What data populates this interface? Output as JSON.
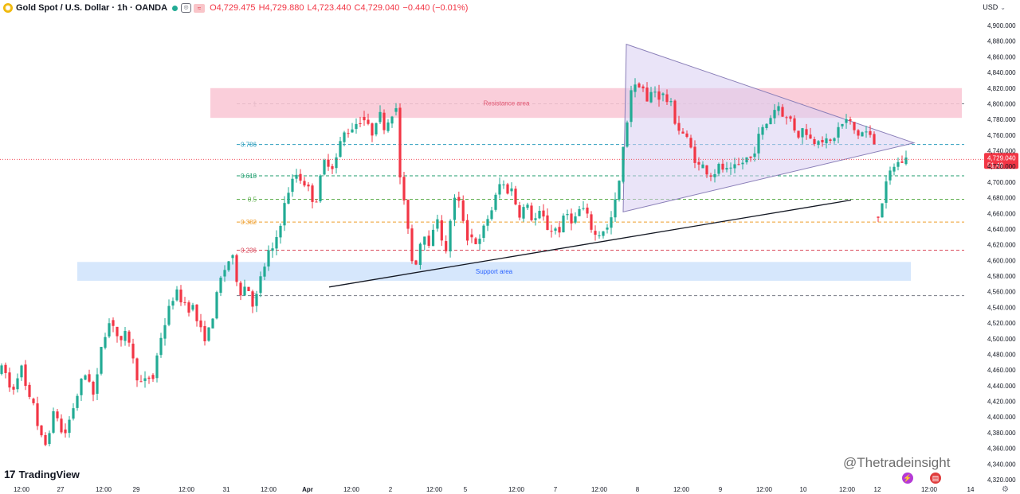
{
  "header": {
    "symbol_title": "Gold Spot / U.S. Dollar · 1h · OANDA",
    "open": "O4,729.475",
    "high": "H4,729.880",
    "low": "L4,723.440",
    "close": "C4,729.040",
    "change": "−0.440 (−0.01%)"
  },
  "currency": "USD",
  "branding": {
    "logo_text": "TradingView",
    "watermark": "@Thetradeinsight"
  },
  "colors": {
    "up": "#22ab94",
    "down": "#f23645",
    "resistance_zone": "#f9c5d4",
    "support_zone": "#cfe3fb",
    "triangle_fill": "#d8cdf3",
    "triangle_stroke": "#8a7fb8"
  },
  "chart_data": {
    "type": "candlestick",
    "symbol": "XAUUSD",
    "interval": "1h",
    "y_axis": {
      "range": [
        4320,
        4920
      ],
      "ticks": [
        4320,
        4340,
        4360,
        4380,
        4400,
        4420,
        4440,
        4460,
        4480,
        4500,
        4520,
        4540,
        4560,
        4580,
        4600,
        4620,
        4640,
        4660,
        4680,
        4700,
        4720,
        4740,
        4760,
        4780,
        4800,
        4820,
        4840,
        4860,
        4880,
        4900
      ],
      "tick_labels": [
        "4,320.000",
        "4,340.000",
        "4,360.000",
        "4,380.000",
        "4,400.000",
        "4,420.000",
        "4,440.000",
        "4,460.000",
        "4,480.000",
        "4,500.000",
        "4,520.000",
        "4,540.000",
        "4,560.000",
        "4,580.000",
        "4,600.000",
        "4,620.000",
        "4,640.000",
        "4,660.000",
        "4,680.000",
        "4,700.000",
        "4,720.000",
        "4,740.000",
        "4,760.000",
        "4,780.000",
        "4,800.000",
        "4,820.000",
        "4,840.000",
        "4,860.000",
        "4,880.000",
        "4,900.000"
      ]
    },
    "x_axis": {
      "range": [
        0,
        1210
      ],
      "ticks": [
        {
          "x": 27,
          "label": "12:00"
        },
        {
          "x": 76,
          "label": "27"
        },
        {
          "x": 130,
          "label": "12:00"
        },
        {
          "x": 171,
          "label": "29"
        },
        {
          "x": 234,
          "label": "12:00"
        },
        {
          "x": 284,
          "label": "31"
        },
        {
          "x": 337,
          "label": "12:00"
        },
        {
          "x": 386,
          "label": "Apr"
        },
        {
          "x": 441,
          "label": "12:00"
        },
        {
          "x": 490,
          "label": "2"
        },
        {
          "x": 545,
          "label": "12:00"
        },
        {
          "x": 584,
          "label": "5"
        },
        {
          "x": 648,
          "label": "12:00"
        },
        {
          "x": 697,
          "label": "7"
        },
        {
          "x": 752,
          "label": "12:00"
        },
        {
          "x": 800,
          "label": "8"
        },
        {
          "x": 855,
          "label": "12:00"
        },
        {
          "x": 904,
          "label": "9"
        },
        {
          "x": 959,
          "label": "12:00"
        },
        {
          "x": 1008,
          "label": "10"
        },
        {
          "x": 1063,
          "label": "12:00"
        },
        {
          "x": 1101,
          "label": "12"
        },
        {
          "x": 1166,
          "label": "12:00"
        },
        {
          "x": 1218,
          "label": "14"
        }
      ]
    },
    "segments": [
      {
        "x": [
          0,
          40
        ],
        "anchors": [
          4460,
          4455,
          4430,
          4445,
          4470,
          4440,
          4420
        ]
      },
      {
        "x": [
          40,
          80
        ],
        "anchors": [
          4420,
          4380,
          4360,
          4390,
          4410,
          4380
        ]
      },
      {
        "x": [
          80,
          140
        ],
        "anchors": [
          4380,
          4410,
          4440,
          4460,
          4420,
          4500,
          4520
        ]
      },
      {
        "x": [
          140,
          190
        ],
        "anchors": [
          4520,
          4490,
          4510,
          4460,
          4440,
          4450
        ]
      },
      {
        "x": [
          190,
          240
        ],
        "anchors": [
          4450,
          4500,
          4530,
          4560,
          4550,
          4540
        ]
      },
      {
        "x": [
          240,
          290
        ],
        "anchors": [
          4540,
          4510,
          4500,
          4540,
          4580,
          4600
        ]
      },
      {
        "x": [
          290,
          340
        ],
        "anchors": [
          4600,
          4560,
          4570,
          4540,
          4580,
          4610
        ]
      },
      {
        "x": [
          340,
          395
        ],
        "anchors": [
          4610,
          4650,
          4690,
          4710,
          4700,
          4680
        ]
      },
      {
        "x": [
          395,
          455
        ],
        "anchors": [
          4680,
          4730,
          4720,
          4760,
          4770,
          4780
        ]
      },
      {
        "x": [
          455,
          495
        ],
        "anchors": [
          4780,
          4760,
          4790,
          4770,
          4790
        ]
      },
      {
        "x": [
          495,
          520
        ],
        "anchors": [
          4790,
          4680,
          4660,
          4600
        ]
      },
      {
        "x": [
          520,
          590
        ],
        "anchors": [
          4600,
          4640,
          4620,
          4660,
          4600,
          4680,
          4670,
          4630
        ]
      },
      {
        "x": [
          590,
          640
        ],
        "anchors": [
          4630,
          4620,
          4650,
          4670,
          4700,
          4690
        ]
      },
      {
        "x": [
          640,
          700
        ],
        "anchors": [
          4690,
          4660,
          4670,
          4650,
          4660,
          4640,
          4640
        ]
      },
      {
        "x": [
          700,
          760
        ],
        "anchors": [
          4640,
          4660,
          4650,
          4670,
          4650,
          4630,
          4640
        ]
      },
      {
        "x": [
          760,
          795
        ],
        "anchors": [
          4640,
          4660,
          4700,
          4760,
          4820
        ]
      },
      {
        "x": [
          795,
          830
        ],
        "anchors": [
          4820,
          4830,
          4800,
          4820,
          4810
        ]
      },
      {
        "x": [
          830,
          880
        ],
        "anchors": [
          4810,
          4800,
          4770,
          4760,
          4740,
          4720
        ]
      },
      {
        "x": [
          880,
          940
        ],
        "anchors": [
          4720,
          4710,
          4720,
          4710,
          4720,
          4730
        ]
      },
      {
        "x": [
          940,
          990
        ],
        "anchors": [
          4730,
          4760,
          4780,
          4800,
          4780
        ]
      },
      {
        "x": [
          990,
          1040
        ],
        "anchors": [
          4780,
          4760,
          4770,
          4750,
          4760,
          4750
        ]
      },
      {
        "x": [
          1040,
          1100
        ],
        "anchors": [
          4750,
          4770,
          4780,
          4760,
          4765,
          4750
        ]
      },
      {
        "x": [
          1100,
          1140
        ],
        "anchors": [
          4660,
          4690,
          4720,
          4725,
          4729
        ]
      }
    ],
    "last_price": {
      "value": 4729.04,
      "label": "4,729.040",
      "countdown": "51:49"
    },
    "fibonacci": [
      {
        "level": "1",
        "price": 4800,
        "color": "#787b86"
      },
      {
        "level": "0.786",
        "price": 4748,
        "color": "#2b9dbd"
      },
      {
        "level": "0.618",
        "price": 4708,
        "color": "#1f9e6e"
      },
      {
        "level": "0.5",
        "price": 4678,
        "color": "#5cad4b"
      },
      {
        "level": "0.382",
        "price": 4649,
        "color": "#ef9d2a"
      },
      {
        "level": "0.236",
        "price": 4613,
        "color": "#d9485a"
      },
      {
        "level": "0",
        "price": 4555,
        "color": "#787b86"
      }
    ],
    "zones": [
      {
        "label": "Resistance area",
        "x": [
          264,
          1207
        ],
        "y": [
          4782,
          4820
        ],
        "color": "#f9c5d4",
        "text_color": "#e05570"
      },
      {
        "label": "Support area",
        "x": [
          97,
          1143
        ],
        "y": [
          4574,
          4598
        ],
        "color": "#cfe3fb",
        "text_color": "#2962ff"
      }
    ],
    "triangle": {
      "points": [
        [
          786,
          4876
        ],
        [
          1147,
          4750
        ],
        [
          782,
          4662
        ]
      ]
    },
    "trendline": {
      "from": [
        413,
        4566
      ],
      "to": [
        1068,
        4677
      ]
    }
  }
}
